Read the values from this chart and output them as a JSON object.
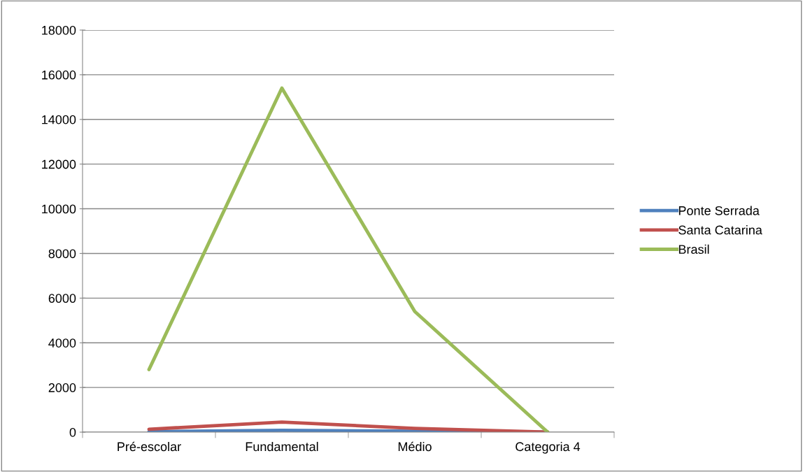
{
  "chart_data": {
    "type": "line",
    "categories": [
      "Pré-escolar",
      "Fundamental",
      "Médio",
      "Categoria 4"
    ],
    "series": [
      {
        "name": "Ponte Serrada",
        "color": "#4f81bd",
        "values": [
          20,
          80,
          40,
          0
        ]
      },
      {
        "name": "Santa Catarina",
        "color": "#c0504d",
        "values": [
          130,
          450,
          170,
          0
        ]
      },
      {
        "name": "Brasil",
        "color": "#9bbb59",
        "values": [
          2800,
          15400,
          5400,
          0
        ]
      }
    ],
    "ylim": [
      0,
      18000
    ],
    "yticks": [
      0,
      2000,
      4000,
      6000,
      8000,
      10000,
      12000,
      14000,
      16000,
      18000
    ],
    "grid": "y",
    "legend": "right",
    "marker": "none",
    "line_style": "solid"
  }
}
